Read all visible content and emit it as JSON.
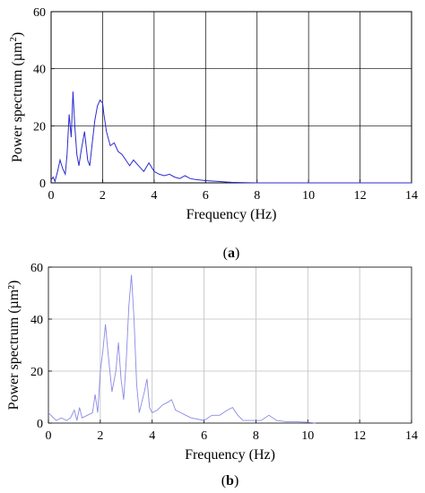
{
  "chart_data": [
    {
      "type": "line",
      "panel": "(a)",
      "caption_left": "(",
      "caption_letter": "a",
      "caption_right": ")",
      "xlabel": "Frequency (Hz)",
      "ylabel": "Power spectrum (µm",
      "ylabel_sup": "2",
      "ylabel_close": ")",
      "xlim": [
        0,
        14
      ],
      "ylim": [
        0,
        60
      ],
      "xticks": [
        0,
        2,
        4,
        6,
        8,
        10,
        12,
        14
      ],
      "yticks": [
        0,
        20,
        40,
        60
      ],
      "grid": true,
      "line_color": "#2b2bd0",
      "series": [
        {
          "x": [
            0,
            0.08,
            0.15,
            0.25,
            0.35,
            0.45,
            0.55,
            0.62,
            0.7,
            0.78,
            0.85,
            0.92,
            1.0,
            1.08,
            1.18,
            1.3,
            1.42,
            1.5,
            1.6,
            1.7,
            1.8,
            1.9,
            2.0,
            2.05,
            2.15,
            2.3,
            2.45,
            2.6,
            2.75,
            2.9,
            3.05,
            3.2,
            3.4,
            3.6,
            3.8,
            4.0,
            4.2,
            4.4,
            4.6,
            4.8,
            5.0,
            5.2,
            5.4,
            5.6,
            6.0,
            6.5,
            7.0,
            7.5,
            8.0,
            10.0,
            12.0,
            14.0
          ],
          "y": [
            1,
            2,
            0.5,
            4,
            8,
            5,
            3,
            10,
            24,
            16,
            32,
            20,
            10,
            6,
            12,
            18,
            8,
            6,
            14,
            22,
            27,
            29,
            28,
            24,
            18,
            13,
            14,
            11,
            10,
            8,
            6,
            8,
            6,
            4,
            7,
            4,
            3,
            2.5,
            3,
            2,
            1.5,
            2.5,
            1.5,
            1.2,
            0.8,
            0.5,
            0.2,
            0.1,
            0,
            0,
            0,
            0
          ]
        }
      ]
    },
    {
      "type": "line",
      "panel": "(b)",
      "caption_left": "(",
      "caption_letter": "b",
      "caption_right": ")",
      "xlabel": "Frequency (Hz)",
      "ylabel": "Power spectrum (µm²)",
      "xlim": [
        0,
        14
      ],
      "ylim": [
        0,
        60
      ],
      "xticks": [
        0,
        2,
        4,
        6,
        8,
        10,
        12,
        14
      ],
      "yticks": [
        0,
        20,
        40,
        60
      ],
      "grid": true,
      "line_color": "#8a8ae6",
      "series": [
        {
          "x": [
            0,
            0.1,
            0.3,
            0.5,
            0.7,
            0.85,
            1.0,
            1.1,
            1.2,
            1.3,
            1.5,
            1.7,
            1.8,
            1.9,
            2.0,
            2.1,
            2.2,
            2.3,
            2.45,
            2.6,
            2.7,
            2.8,
            2.9,
            3.0,
            3.1,
            3.2,
            3.3,
            3.4,
            3.5,
            3.6,
            3.7,
            3.8,
            3.9,
            4.0,
            4.2,
            4.4,
            4.6,
            4.75,
            4.9,
            5.1,
            5.3,
            5.5,
            6.0,
            6.3,
            6.6,
            6.9,
            7.1,
            7.3,
            7.5,
            7.8,
            8.2,
            8.5,
            8.8,
            9.2,
            9.6,
            10.0,
            10.3
          ],
          "y": [
            4,
            3,
            1,
            2,
            1,
            2,
            5,
            1,
            6,
            2,
            3,
            4,
            11,
            4,
            20,
            28,
            38,
            27,
            12,
            20,
            31,
            17,
            9,
            24,
            45,
            57,
            40,
            15,
            4,
            8,
            12,
            17,
            6,
            4,
            5,
            7,
            8,
            9,
            5,
            4,
            3,
            2,
            1,
            3,
            3,
            5,
            6,
            3,
            1,
            1,
            1,
            3,
            1,
            0.5,
            0.5,
            0.3,
            0
          ]
        }
      ]
    }
  ]
}
